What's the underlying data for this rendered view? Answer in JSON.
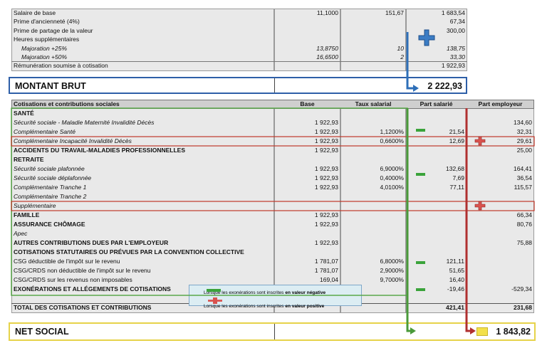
{
  "top_table": {
    "rows": [
      {
        "label": "Salaire de base",
        "base": "11,1000",
        "taux": "151,67",
        "montant": "1 683,54"
      },
      {
        "label": "Prime d'ancienneté (4%)",
        "montant": "67,34"
      },
      {
        "label": "Prime de partage de la valeur",
        "montant": "300,00"
      },
      {
        "label": "Heures supplémentaires"
      },
      {
        "label": "Majoration +25%",
        "base": "13,8750",
        "taux": "10",
        "montant": "138,75",
        "style": "italic"
      },
      {
        "label": "Majoration +50%",
        "base": "16,6500",
        "taux": "2",
        "montant": "33,30",
        "style": "italic"
      },
      {
        "label": "Rémunération soumise à cotisation",
        "montant": "1 922,93"
      }
    ]
  },
  "brut": {
    "label": "MONTANT BRUT",
    "value": "2 222,93"
  },
  "main_table": {
    "header": [
      "Cotisations et contributions sociales",
      "Base",
      "Taux salarial",
      "Part salarié",
      "Part employeur"
    ],
    "rows": [
      {
        "label": "SANTÉ",
        "style": "bold"
      },
      {
        "label": "Sécurité sociale - Maladie Maternité Invalidité Décès",
        "base": "1 922,93",
        "employeur": "134,60",
        "style": "italic"
      },
      {
        "label": "Complémentaire Santé",
        "base": "1 922,93",
        "taux": "1,1200%",
        "salarie": "21,54",
        "employeur": "32,31",
        "style": "italic"
      },
      {
        "label": "Complémentaire Incapacité Invalidité Décès",
        "base": "1 922,93",
        "taux": "0,6600%",
        "salarie": "12,69",
        "employeur": "29,61",
        "style": "italic"
      },
      {
        "label": "ACCIDENTS DU TRAVAIL-MALADIES PROFESSIONNELLES",
        "base": "1 922,93",
        "employeur": "25,00",
        "style": "bold"
      },
      {
        "label": "RETRAITE",
        "style": "bold"
      },
      {
        "label": "Sécurité sociale plafonnée",
        "base": "1 922,93",
        "taux": "6,9000%",
        "salarie": "132,68",
        "employeur": "164,41",
        "style": "italic"
      },
      {
        "label": "Sécurité sociale déplafonnée",
        "base": "1 922,93",
        "taux": "0,4000%",
        "salarie": "7,69",
        "employeur": "36,54",
        "style": "italic"
      },
      {
        "label": "Complémentaire Tranche 1",
        "base": "1 922,93",
        "taux": "4,0100%",
        "salarie": "77,11",
        "employeur": "115,57",
        "style": "italic"
      },
      {
        "label": "Complémentaire Tranche 2",
        "style": "italic"
      },
      {
        "label": "Supplémentaire",
        "style": "italic"
      },
      {
        "label": "FAMILLE",
        "base": "1 922,93",
        "employeur": "66,34",
        "style": "bold"
      },
      {
        "label": "ASSURANCE CHÔMAGE",
        "base": "1 922,93",
        "employeur": "80,76",
        "style": "bold"
      },
      {
        "label": "Apec",
        "style": "italic"
      },
      {
        "label": "AUTRES CONTRIBUTIONS DUES PAR L'EMPLOYEUR",
        "base": "1 922,93",
        "employeur": "75,88",
        "style": "bold"
      },
      {
        "label": "COTISATIONS STATUTAIRES OU PRÉVUES PAR LA CONVENTION COLLECTIVE",
        "style": "bold"
      },
      {
        "label": "CSG déductible de l'impôt sur le revenu",
        "base": "1 781,07",
        "taux": "6,8000%",
        "salarie": "121,11"
      },
      {
        "label": "CSG/CRDS non déductible de l'impôt sur le revenu",
        "base": "1 781,07",
        "taux": "2,9000%",
        "salarie": "51,65"
      },
      {
        "label": "CSG/CRDS sur les revenus non imposables",
        "base": "169,04",
        "taux": "9,7000%",
        "salarie": "16,40"
      },
      {
        "label": "EXONÉRATIONS ET ALLÉGEMENTS DE COTISATIONS",
        "salarie": "-19,46",
        "employeur": "-529,34",
        "style": "bold"
      }
    ],
    "total": {
      "label": "TOTAL DES COTISATIONS ET CONTRIBUTIONS",
      "salarie": "421,41",
      "employeur": "231,68"
    }
  },
  "net": {
    "label": "NET SOCIAL",
    "value": "1 843,82"
  },
  "legend": [
    {
      "text": "Lorsque les exonérations sont inscrites",
      "emphasis": "en valeur négative"
    },
    {
      "text": "Lorsque les exonérations sont inscrites",
      "emphasis": "en valeur positive"
    }
  ]
}
